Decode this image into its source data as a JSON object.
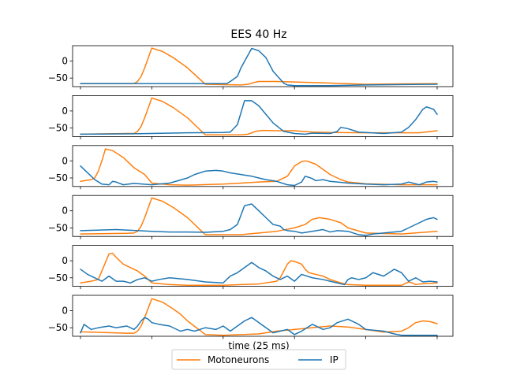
{
  "chart_data": {
    "type": "line",
    "title": "EES 40 Hz",
    "xlabel": "time (25 ms)",
    "legend": {
      "placement": "bottom-center",
      "entries": [
        "Motoneurons",
        "IP"
      ]
    },
    "x_range": [
      0,
      100
    ],
    "ylim": [
      -75,
      45
    ],
    "yticks": [
      0,
      -50
    ],
    "grid": false,
    "series_colors": {
      "Motoneurons": "#ff7f0e",
      "IP": "#1f77b4"
    },
    "panels": [
      {
        "series": [
          {
            "name": "Motoneurons",
            "x": [
              0,
              13,
              15,
              16,
              17,
              18,
              20,
              23,
              26,
              28,
              30,
              35,
              45,
              47,
              49,
              50,
              55,
              65,
              80,
              100
            ],
            "y": [
              -66,
              -66,
              -66,
              -60,
              -45,
              -20,
              38,
              28,
              10,
              -5,
              -20,
              -68,
              -70,
              -68,
              -62,
              -60,
              -60,
              -63,
              -68,
              -66
            ]
          },
          {
            "name": "IP",
            "x": [
              0,
              20,
              35,
              40,
              41,
              42,
              44,
              45,
              48,
              50,
              52,
              54,
              57,
              58,
              60,
              70,
              80,
              100
            ],
            "y": [
              -66,
              -66,
              -66,
              -66,
              -66,
              -60,
              -45,
              -20,
              37,
              30,
              10,
              -30,
              -65,
              -70,
              -72,
              -72,
              -70,
              -68
            ]
          }
        ]
      },
      {
        "series": [
          {
            "name": "Motoneurons",
            "x": [
              0,
              13,
              15,
              16,
              17,
              18,
              20,
              23,
              26,
              28,
              30,
              35,
              45,
              47,
              49,
              51,
              55,
              60,
              65,
              70,
              80,
              90,
              95,
              100
            ],
            "y": [
              -68,
              -66,
              -66,
              -60,
              -45,
              -20,
              38,
              28,
              10,
              -5,
              -20,
              -70,
              -70,
              -68,
              -60,
              -57,
              -58,
              -58,
              -62,
              -63,
              -64,
              -64,
              -64,
              -58
            ]
          },
          {
            "name": "IP",
            "x": [
              0,
              15,
              30,
              40,
              42,
              44,
              46,
              48,
              50,
              52,
              54,
              57,
              60,
              63,
              65,
              70,
              72,
              73,
              75,
              78,
              80,
              85,
              90,
              92,
              94,
              96,
              97,
              99,
              100
            ],
            "y": [
              -68,
              -67,
              -64,
              -63,
              -62,
              -40,
              30,
              30,
              15,
              -10,
              -35,
              -60,
              -66,
              -68,
              -65,
              -66,
              -60,
              -48,
              -52,
              -62,
              -63,
              -66,
              -62,
              -48,
              -25,
              5,
              12,
              5,
              -10
            ]
          }
        ]
      },
      {
        "series": [
          {
            "name": "Motoneurons",
            "x": [
              0,
              3,
              4,
              5,
              6,
              7,
              9,
              12,
              15,
              18,
              20,
              25,
              30,
              40,
              45,
              50,
              55,
              58,
              60,
              62,
              63,
              64,
              66,
              68,
              70,
              73,
              75,
              80,
              90,
              100
            ],
            "y": [
              -60,
              -55,
              -50,
              -30,
              0,
              35,
              30,
              10,
              -20,
              -40,
              -65,
              -70,
              -71,
              -68,
              -65,
              -62,
              -60,
              -45,
              -15,
              -2,
              0,
              -2,
              -10,
              -25,
              -40,
              -55,
              -62,
              -67,
              -70,
              -70
            ]
          },
          {
            "name": "IP",
            "x": [
              0,
              2,
              4,
              6,
              8,
              9,
              10,
              12,
              15,
              20,
              25,
              30,
              32,
              35,
              38,
              40,
              42,
              45,
              48,
              50,
              52,
              55,
              58,
              60,
              62,
              63,
              64,
              65,
              66,
              68,
              70,
              72,
              75,
              80,
              85,
              90,
              92,
              95,
              97,
              99,
              100
            ],
            "y": [
              -15,
              -35,
              -55,
              -68,
              -70,
              -60,
              -62,
              -70,
              -66,
              -70,
              -65,
              -50,
              -40,
              -30,
              -28,
              -30,
              -35,
              -40,
              -45,
              -50,
              -55,
              -60,
              -70,
              -72,
              -62,
              -45,
              -48,
              -52,
              -58,
              -55,
              -60,
              -62,
              -65,
              -68,
              -70,
              -68,
              -62,
              -70,
              -62,
              -60,
              -62
            ]
          }
        ]
      },
      {
        "series": [
          {
            "name": "Motoneurons",
            "x": [
              0,
              13,
              15,
              16,
              17,
              18,
              20,
              23,
              26,
              28,
              30,
              35,
              45,
              47,
              50,
              55,
              60,
              63,
              65,
              67,
              70,
              73,
              75,
              80,
              90,
              100
            ],
            "y": [
              -68,
              -66,
              -65,
              -60,
              -45,
              -20,
              38,
              28,
              10,
              -5,
              -20,
              -70,
              -70,
              -68,
              -65,
              -60,
              -50,
              -40,
              -25,
              -20,
              -25,
              -35,
              -50,
              -65,
              -68,
              -60
            ]
          },
          {
            "name": "IP",
            "x": [
              0,
              10,
              20,
              25,
              30,
              35,
              40,
              42,
              44,
              46,
              48,
              50,
              52,
              54,
              56,
              57,
              58,
              60,
              62,
              65,
              68,
              70,
              72,
              75,
              78,
              80,
              82,
              85,
              90,
              92,
              95,
              97,
              99,
              100
            ],
            "y": [
              -58,
              -55,
              -60,
              -62,
              -62,
              -63,
              -60,
              -55,
              -40,
              15,
              20,
              0,
              -20,
              -40,
              -45,
              -55,
              -58,
              -60,
              -65,
              -60,
              -55,
              -62,
              -58,
              -60,
              -70,
              -72,
              -68,
              -65,
              -60,
              -50,
              -35,
              -25,
              -20,
              -25
            ]
          }
        ]
      },
      {
        "series": [
          {
            "name": "Motoneurons",
            "x": [
              0,
              3,
              5,
              6,
              7,
              8,
              9,
              10,
              12,
              14,
              16,
              18,
              20,
              25,
              30,
              40,
              45,
              50,
              55,
              56,
              57,
              58,
              59,
              60,
              62,
              63,
              64,
              66,
              68,
              70,
              73,
              75,
              80,
              90,
              92,
              93,
              94,
              95,
              100
            ],
            "y": [
              -65,
              -60,
              -55,
              -30,
              -5,
              20,
              22,
              10,
              -10,
              -20,
              -30,
              -45,
              -65,
              -70,
              -72,
              -72,
              -70,
              -68,
              -60,
              -50,
              -30,
              -10,
              0,
              -2,
              -10,
              -25,
              -35,
              -40,
              -45,
              -55,
              -65,
              -70,
              -72,
              -72,
              -62,
              -65,
              -70,
              -68,
              -65
            ]
          },
          {
            "name": "IP",
            "x": [
              0,
              2,
              4,
              6,
              8,
              10,
              12,
              14,
              16,
              18,
              20,
              22,
              25,
              30,
              35,
              40,
              42,
              44,
              46,
              48,
              50,
              52,
              54,
              56,
              58,
              60,
              62,
              65,
              68,
              70,
              72,
              74,
              75,
              76,
              78,
              80,
              82,
              85,
              88,
              90,
              92,
              94,
              96,
              98,
              100
            ],
            "y": [
              -25,
              -40,
              -50,
              -60,
              -45,
              -60,
              -60,
              -65,
              -55,
              -50,
              -60,
              -55,
              -50,
              -55,
              -62,
              -65,
              -45,
              -35,
              -20,
              -5,
              -20,
              -30,
              -45,
              -55,
              -45,
              -60,
              -40,
              -50,
              -55,
              -60,
              -65,
              -70,
              -55,
              -50,
              -55,
              -50,
              -35,
              -45,
              -25,
              -35,
              -60,
              -50,
              -62,
              -60,
              -62
            ]
          }
        ]
      },
      {
        "series": [
          {
            "name": "Motoneurons",
            "x": [
              0,
              13,
              15,
              16,
              17,
              18,
              20,
              23,
              26,
              28,
              30,
              35,
              40,
              45,
              50,
              55,
              60,
              65,
              70,
              75,
              80,
              85,
              90,
              92,
              94,
              96,
              98,
              100
            ],
            "y": [
              -62,
              -66,
              -66,
              -60,
              -45,
              -20,
              35,
              25,
              5,
              -10,
              -30,
              -70,
              -72,
              -70,
              -68,
              -60,
              -55,
              -50,
              -45,
              -48,
              -55,
              -63,
              -60,
              -50,
              -35,
              -30,
              -32,
              -38
            ]
          },
          {
            "name": "IP",
            "x": [
              0,
              1,
              3,
              5,
              8,
              10,
              13,
              15,
              16,
              17,
              18,
              19,
              20,
              22,
              25,
              28,
              30,
              32,
              35,
              38,
              40,
              42,
              44,
              46,
              48,
              50,
              52,
              54,
              56,
              58,
              60,
              62,
              65,
              68,
              70,
              72,
              75,
              78,
              80,
              85,
              88,
              90,
              92,
              95,
              100
            ],
            "y": [
              -65,
              -40,
              -55,
              -50,
              -45,
              -50,
              -45,
              -55,
              -45,
              -30,
              -20,
              -25,
              -35,
              -40,
              -45,
              -60,
              -55,
              -60,
              -50,
              -55,
              -45,
              -60,
              -45,
              -30,
              -20,
              -35,
              -50,
              -65,
              -60,
              -55,
              -70,
              -60,
              -40,
              -55,
              -50,
              -35,
              -25,
              -40,
              -55,
              -60,
              -68,
              -72,
              -72,
              -72,
              -72
            ]
          }
        ]
      }
    ]
  }
}
